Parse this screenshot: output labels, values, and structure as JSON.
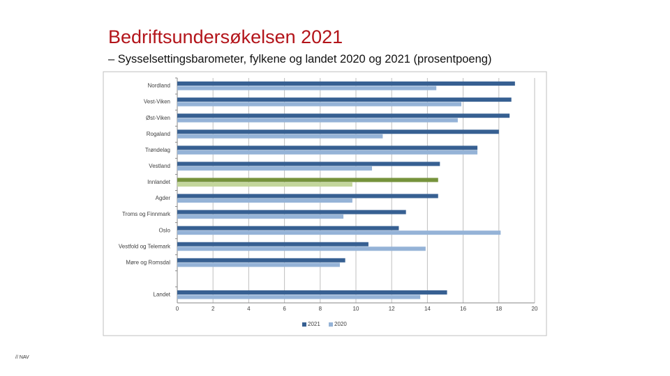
{
  "title": "Bedriftsundersøkelsen 2021",
  "subtitle": "– Sysselsettingsbarometer, fylkene og landet 2020 og 2021 (prosentpoeng)",
  "footer": "// NAV",
  "chart_data": {
    "type": "hbar",
    "categories": [
      "Nordland",
      "Vest-Viken",
      "Øst-Viken",
      "Rogaland",
      "Trøndelag",
      "Vestland",
      "Innlandet",
      "Agder",
      "Troms og Finnmark",
      "Oslo",
      "Vestfold og Telemark",
      "Møre og Romsdal",
      null,
      "Landet"
    ],
    "series": [
      {
        "name": "2021",
        "color": "#376092",
        "highlight_color": "#76933c",
        "values": [
          18.9,
          18.7,
          18.6,
          18.0,
          16.8,
          14.7,
          14.6,
          14.6,
          12.8,
          12.4,
          10.7,
          9.4,
          null,
          15.1
        ]
      },
      {
        "name": "2020",
        "color": "#95b3d7",
        "highlight_color": "#c3d69b",
        "values": [
          14.5,
          15.9,
          15.7,
          11.5,
          16.8,
          10.9,
          9.8,
          9.8,
          9.3,
          18.1,
          13.9,
          9.1,
          null,
          13.6
        ]
      }
    ],
    "highlight_category": "Innlandet",
    "xlim": [
      0,
      20
    ],
    "xticks": [
      0,
      2,
      4,
      6,
      8,
      10,
      12,
      14,
      16,
      18,
      20
    ],
    "grid": true
  }
}
